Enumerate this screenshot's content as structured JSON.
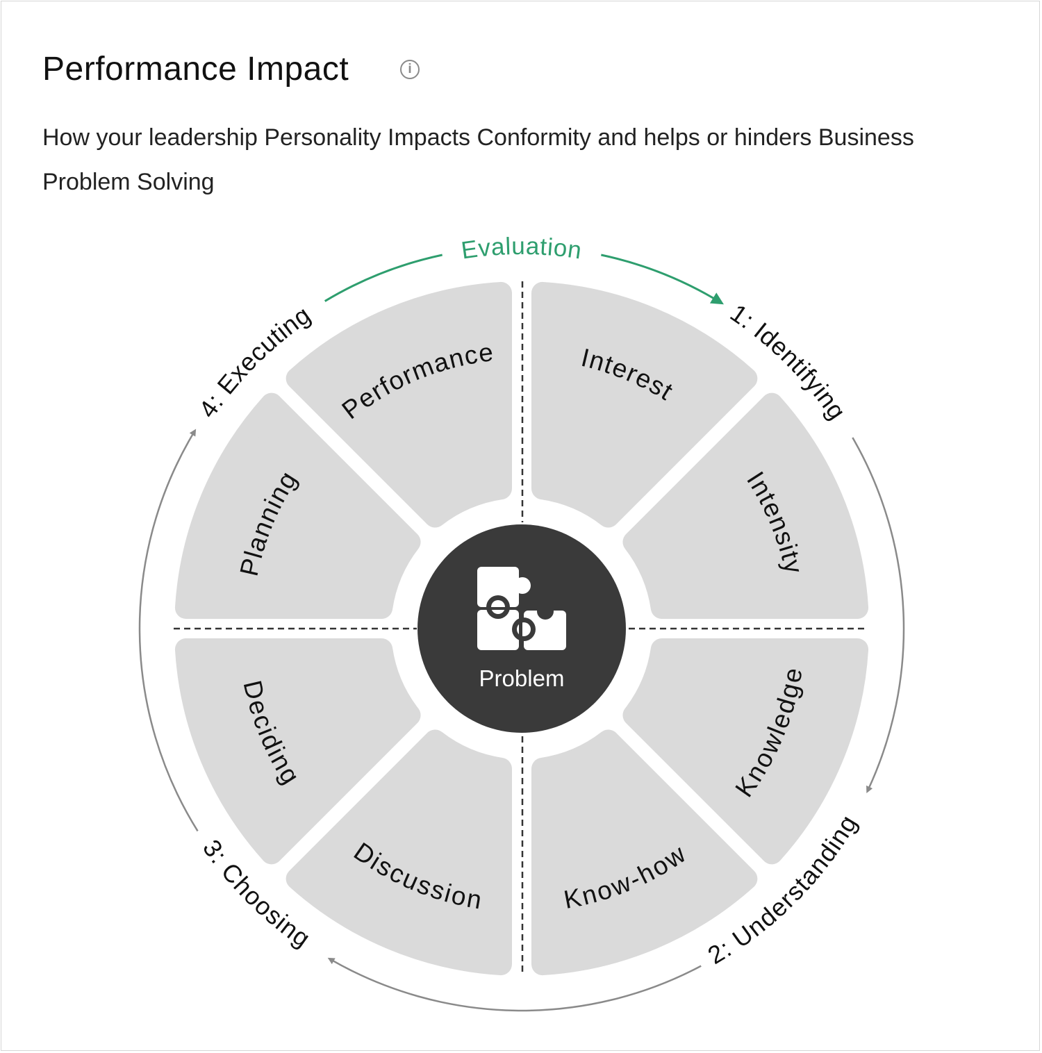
{
  "header": {
    "title": "Performance Impact",
    "info_icon": "info-circle-icon",
    "subtitle": "How your leadership Personality Impacts Conformity and helps or hinders Business Problem Solving"
  },
  "diagram": {
    "center": {
      "label": "Problem",
      "icon": "puzzle-pieces-icon",
      "color": "#3a3a3a"
    },
    "segment_color": "#dadada",
    "segments": [
      {
        "label": "Interest"
      },
      {
        "label": "Intensity"
      },
      {
        "label": "Knowledge"
      },
      {
        "label": "Know-how"
      },
      {
        "label": "Discussion"
      },
      {
        "label": "Deciding"
      },
      {
        "label": "Planning"
      },
      {
        "label": "Performance"
      }
    ],
    "stages": [
      {
        "label": "1: Identifying"
      },
      {
        "label": "2: Understanding"
      },
      {
        "label": "3: Choosing"
      },
      {
        "label": "4: Executing"
      }
    ],
    "evaluation": {
      "label": "Evaluation",
      "color": "#2e9e6e"
    },
    "cycle_arrow_color": "#8a8a8a"
  }
}
